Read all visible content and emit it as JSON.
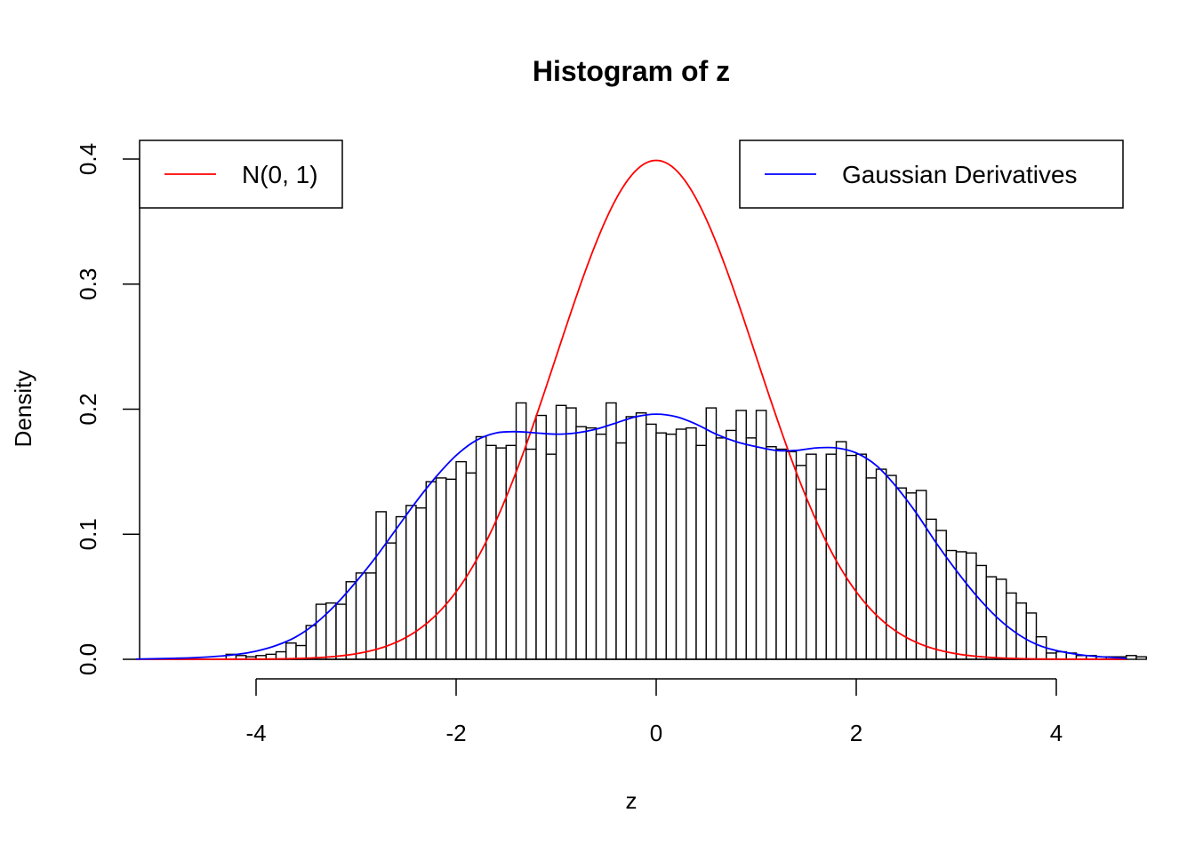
{
  "chart_data": {
    "type": "histogram",
    "title": "Histogram of z",
    "xlabel": "z",
    "ylabel": "Density",
    "xlim": [
      -5.2,
      4.7
    ],
    "ylim": [
      0,
      0.4
    ],
    "x_ticks": [
      "-4",
      "-2",
      "0",
      "2",
      "4"
    ],
    "x_tick_values": [
      -4,
      -2,
      0,
      2,
      4
    ],
    "y_ticks": [
      "0.0",
      "0.1",
      "0.2",
      "0.3",
      "0.4"
    ],
    "y_tick_values": [
      0,
      0.1,
      0.2,
      0.3,
      0.4
    ],
    "bin_width": 0.1,
    "bins_start": -4.8,
    "bin_values": [
      0.001,
      0,
      0,
      0,
      0,
      0.004,
      0.003,
      0.002,
      0.003,
      0.004,
      0.006,
      0.013,
      0.011,
      0.027,
      0.044,
      0.045,
      0.044,
      0.062,
      0.069,
      0.069,
      0.118,
      0.093,
      0.114,
      0.123,
      0.121,
      0.142,
      0.145,
      0.144,
      0.158,
      0.149,
      0.178,
      0.171,
      0.169,
      0.171,
      0.205,
      0.168,
      0.195,
      0.164,
      0.203,
      0.201,
      0.186,
      0.185,
      0.18,
      0.205,
      0.173,
      0.194,
      0.197,
      0.188,
      0.181,
      0.18,
      0.184,
      0.185,
      0.171,
      0.201,
      0.177,
      0.183,
      0.199,
      0.177,
      0.199,
      0.17,
      0.168,
      0.166,
      0.155,
      0.164,
      0.136,
      0.164,
      0.174,
      0.163,
      0.164,
      0.145,
      0.152,
      0.147,
      0.137,
      0.133,
      0.135,
      0.112,
      0.103,
      0.087,
      0.086,
      0.085,
      0.075,
      0.066,
      0.064,
      0.053,
      0.045,
      0.037,
      0.018,
      0.005,
      0.006,
      0.005,
      0.003,
      0.003,
      0.002,
      0.002,
      0.002,
      0.003,
      0.002
    ],
    "series": [
      {
        "name": "N(0, 1)",
        "color": "#ff0000",
        "kind": "normal-density",
        "mean": 0,
        "sd": 1
      },
      {
        "name": "Gaussian Derivatives",
        "color": "#0000ff",
        "kind": "density-curve",
        "x": [
          -5.2,
          -4.8,
          -4.5,
          -4.2,
          -4.0,
          -3.8,
          -3.6,
          -3.4,
          -3.2,
          -3.0,
          -2.8,
          -2.6,
          -2.4,
          -2.2,
          -2.0,
          -1.8,
          -1.6,
          -1.4,
          -1.2,
          -1.0,
          -0.8,
          -0.6,
          -0.4,
          -0.2,
          0.0,
          0.2,
          0.4,
          0.6,
          0.8,
          1.0,
          1.2,
          1.4,
          1.6,
          1.8,
          2.0,
          2.2,
          2.4,
          2.6,
          2.8,
          3.0,
          3.2,
          3.4,
          3.6,
          3.8,
          4.0,
          4.3,
          4.7
        ],
        "y": [
          0.0002,
          0.0008,
          0.0018,
          0.0038,
          0.0065,
          0.011,
          0.018,
          0.029,
          0.044,
          0.062,
          0.082,
          0.104,
          0.126,
          0.146,
          0.163,
          0.175,
          0.181,
          0.182,
          0.181,
          0.18,
          0.181,
          0.184,
          0.189,
          0.194,
          0.196,
          0.194,
          0.188,
          0.18,
          0.174,
          0.17,
          0.167,
          0.167,
          0.169,
          0.169,
          0.165,
          0.155,
          0.138,
          0.117,
          0.093,
          0.071,
          0.051,
          0.034,
          0.021,
          0.012,
          0.007,
          0.003,
          0.0007
        ]
      }
    ],
    "legends": [
      {
        "position": "top-left",
        "entries": [
          "N(0, 1)"
        ]
      },
      {
        "position": "top-right",
        "entries": [
          "Gaussian Derivatives"
        ]
      }
    ]
  }
}
